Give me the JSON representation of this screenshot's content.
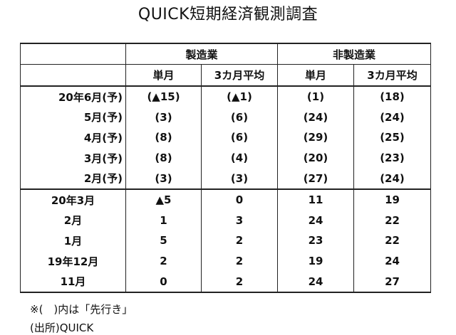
{
  "title": "QUICK短期経済観測調査",
  "table": {
    "groups": [
      "製造業",
      "非製造業"
    ],
    "subheaders": [
      "単月",
      "3カ月平均",
      "単月",
      "3カ月平均"
    ],
    "forecast_rows": [
      {
        "label": "20年6月(予)",
        "values": [
          "(▲15)",
          "(▲1)",
          "(1)",
          "(18)"
        ]
      },
      {
        "label": "5月(予)",
        "values": [
          "(3)",
          "(6)",
          "(24)",
          "(24)"
        ]
      },
      {
        "label": "4月(予)",
        "values": [
          "(8)",
          "(6)",
          "(29)",
          "(25)"
        ]
      },
      {
        "label": "3月(予)",
        "values": [
          "(8)",
          "(4)",
          "(20)",
          "(23)"
        ]
      },
      {
        "label": "2月(予)",
        "values": [
          "(3)",
          "(3)",
          "(27)",
          "(24)"
        ]
      }
    ],
    "actual_rows": [
      {
        "label": "20年3月",
        "values": [
          "▲5",
          "0",
          "11",
          "19"
        ]
      },
      {
        "label": "2月",
        "values": [
          "1",
          "3",
          "24",
          "22"
        ]
      },
      {
        "label": "1月",
        "values": [
          "5",
          "2",
          "23",
          "22"
        ]
      },
      {
        "label": "19年12月",
        "values": [
          "2",
          "2",
          "19",
          "24"
        ]
      },
      {
        "label": "11月",
        "values": [
          "0",
          "2",
          "24",
          "27"
        ]
      }
    ]
  },
  "notes": [
    "※(　)内は「先行き」",
    "(出所)QUICK"
  ]
}
